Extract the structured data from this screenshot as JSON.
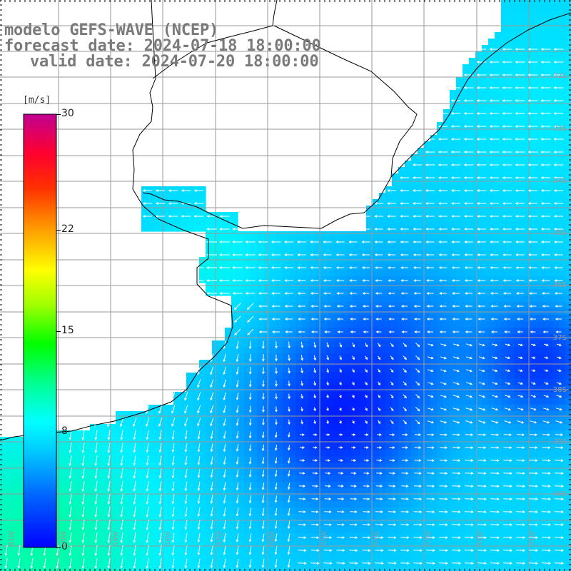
{
  "title": {
    "line1": "modelo GEFS-WAVE (NCEP)",
    "line2": "forecast date: 2024-07-18 18:00:00",
    "line3": "valid date: 2024-07-20 18:00:00"
  },
  "colorbar": {
    "unit": "[m/s]",
    "min": 0,
    "max": 30,
    "labels": [
      "30",
      "22",
      "15",
      "8",
      "0"
    ],
    "label_values": [
      30,
      22,
      15,
      8,
      0
    ],
    "colors": [
      "#0000ff",
      "#0090ff",
      "#00e5ff",
      "#00ff90",
      "#00ff00",
      "#c8ff00",
      "#ffff00",
      "#ffb400",
      "#ff5a00",
      "#ff0000",
      "#e0004a",
      "#c00080"
    ]
  },
  "lat_labels": [
    "32S",
    "33S",
    "34S",
    "35S",
    "36S",
    "37S",
    "38S",
    "39S",
    "40S"
  ],
  "lon_labels": [
    "61W",
    "60W",
    "59W",
    "58W",
    "57W",
    "56W",
    "55W",
    "54W",
    "53W",
    "52W",
    "51W"
  ],
  "map_colors": {
    "land": "#ffffff",
    "grid": "#9a9a9a",
    "coast": "#000000",
    "arrow": "#ffffff"
  }
}
